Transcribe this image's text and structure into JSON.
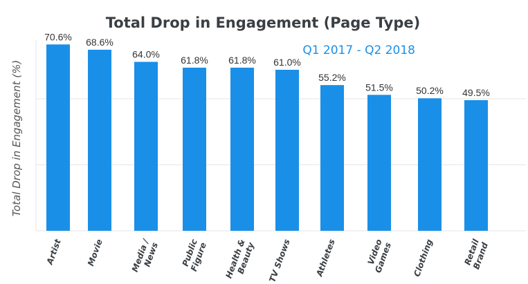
{
  "chart_data": {
    "type": "bar",
    "title": "Total Drop in Engagement (Page Type)",
    "subtitle": "Q1 2017 - Q2 2018",
    "xlabel": "",
    "ylabel": "Total Drop in Engagement (%)",
    "ylim": [
      0,
      75
    ],
    "grid": true,
    "gridlines": [
      25,
      50
    ],
    "color": "#1a8fe8",
    "categories": [
      [
        "Artist"
      ],
      [
        "Movie"
      ],
      [
        "Media /",
        "News"
      ],
      [
        "Public",
        "Figure"
      ],
      [
        "Health &",
        "Beauty"
      ],
      [
        "TV Shows"
      ],
      [
        "Athletes"
      ],
      [
        "Video",
        "Games"
      ],
      [
        "Clothing"
      ],
      [
        "Retail",
        "Brand"
      ]
    ],
    "values": [
      70.6,
      68.6,
      64.0,
      61.8,
      61.8,
      61.0,
      55.2,
      51.5,
      50.2,
      49.5
    ],
    "labels": [
      "70.6%",
      "68.6%",
      "64.0%",
      "61.8%",
      "61.8%",
      "61.0%",
      "55.2%",
      "51.5%",
      "50.2%",
      "49.5%"
    ]
  }
}
